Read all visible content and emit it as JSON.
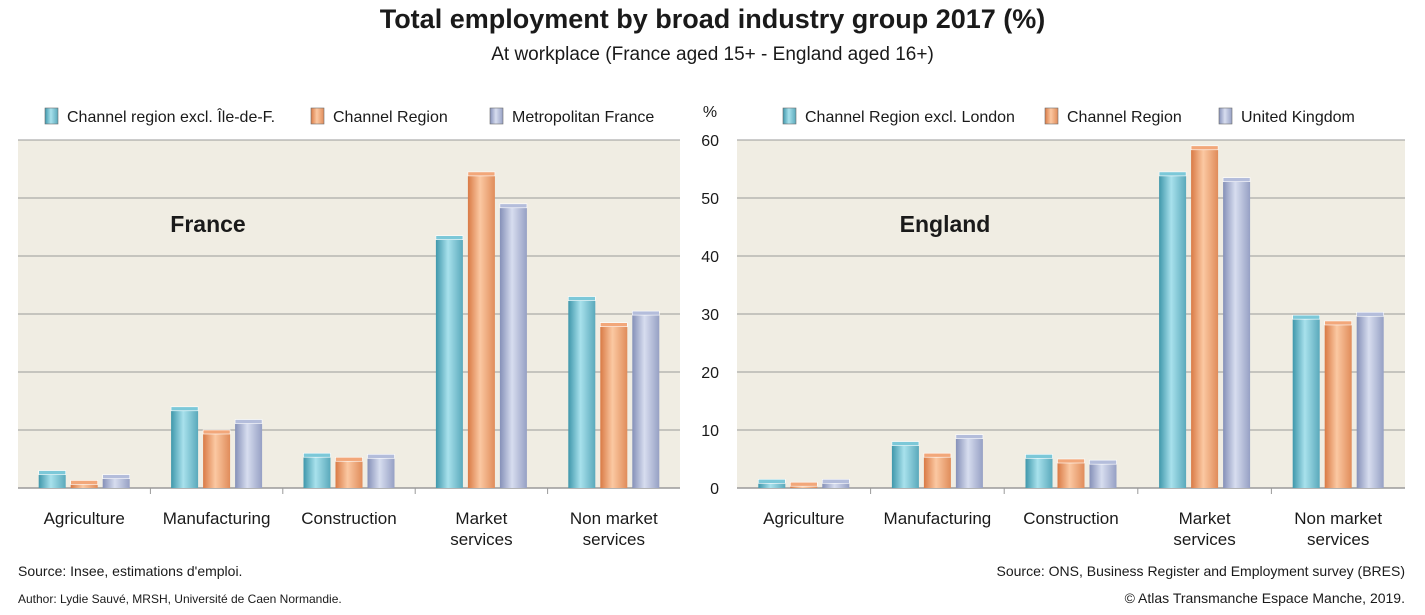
{
  "title": "Total employment by broad industry group 2017 (%)",
  "subtitle": "At workplace (France aged 15+ - England aged 16+)",
  "unit_label": "%",
  "colors": {
    "series1": "#7cc8d8",
    "series2": "#f2a77a",
    "series3": "#b4bddb",
    "plot_bg": "#f0ede3",
    "gridline": "#9a9a9a"
  },
  "chart_data": [
    {
      "type": "bar",
      "panel_label": "France",
      "categories": [
        "Agriculture",
        "Manufacturing",
        "Construction",
        "Market services",
        "Non market services"
      ],
      "category_lines": [
        [
          "Agriculture"
        ],
        [
          "Manufacturing"
        ],
        [
          "Construction"
        ],
        [
          "Market",
          "services"
        ],
        [
          "Non market",
          "services"
        ]
      ],
      "series": [
        {
          "name": "Channel region excl. Île-de-F.",
          "values": [
            3,
            14,
            6,
            43.5,
            33
          ]
        },
        {
          "name": "Channel Region",
          "values": [
            1.3,
            10,
            5.3,
            54.5,
            28.5
          ]
        },
        {
          "name": "Metropolitan France",
          "values": [
            2.3,
            11.8,
            5.8,
            49,
            30.5
          ]
        }
      ],
      "ylim": [
        0,
        60
      ],
      "grid": true,
      "legend": "top"
    },
    {
      "type": "bar",
      "panel_label": "England",
      "categories": [
        "Agriculture",
        "Manufacturing",
        "Construction",
        "Market services",
        "Non market services"
      ],
      "category_lines": [
        [
          "Agriculture"
        ],
        [
          "Manufacturing"
        ],
        [
          "Construction"
        ],
        [
          "Market",
          "services"
        ],
        [
          "Non market",
          "services"
        ]
      ],
      "series": [
        {
          "name": "Channel Region excl. London",
          "values": [
            1.5,
            8,
            5.8,
            54.5,
            29.8
          ]
        },
        {
          "name": "Channel Region",
          "values": [
            1,
            6,
            5,
            59,
            28.8
          ]
        },
        {
          "name": "United Kingdom",
          "values": [
            1.5,
            9.2,
            4.8,
            53.5,
            30.3
          ]
        }
      ],
      "yticks": [
        0,
        10,
        20,
        30,
        40,
        50,
        60
      ],
      "ylim": [
        0,
        60
      ],
      "grid": true,
      "legend": "top"
    }
  ],
  "footer": {
    "source_left": "Source: Insee, estimations d'emploi.",
    "author": "Author: Lydie Sauvé, MRSH, Université de Caen Normandie.",
    "source_right": "Source: ONS, Business Register and Employment survey (BRES)",
    "copyright": "© Atlas Transmanche Espace Manche, 2019."
  }
}
